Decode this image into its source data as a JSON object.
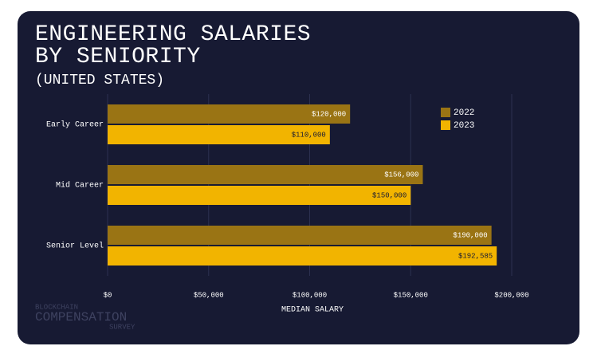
{
  "chart_data": {
    "type": "bar",
    "orientation": "horizontal",
    "title": "ENGINEERING SALARIES BY SENIORITY",
    "subtitle": "(UNITED STATES)",
    "x_label": "MEDIAN SALARY",
    "categories": [
      "Early Career",
      "Mid Career",
      "Senior Level"
    ],
    "series": [
      {
        "name": "2022",
        "color": "#9a7414",
        "values": [
          120000,
          156000,
          190000
        ],
        "value_labels": [
          "$120,000",
          "$156,000",
          "$190,000"
        ]
      },
      {
        "name": "2023",
        "color": "#f2b400",
        "values": [
          110000,
          150000,
          192585
        ],
        "value_labels": [
          "$110,000",
          "$150,000",
          "$192,585"
        ]
      }
    ],
    "xlim": [
      0,
      200000
    ],
    "xticks": [
      {
        "value": 0,
        "label": "$0"
      },
      {
        "value": 50000,
        "label": "$50,000"
      },
      {
        "value": 100000,
        "label": "$100,000"
      },
      {
        "value": 150000,
        "label": "$150,000"
      },
      {
        "value": 200000,
        "label": "$200,000"
      }
    ],
    "grid": true,
    "legend": "upper right",
    "annotations": [
      "BLOCKCHAIN",
      "COMPENSATION",
      "SURVEY"
    ]
  }
}
